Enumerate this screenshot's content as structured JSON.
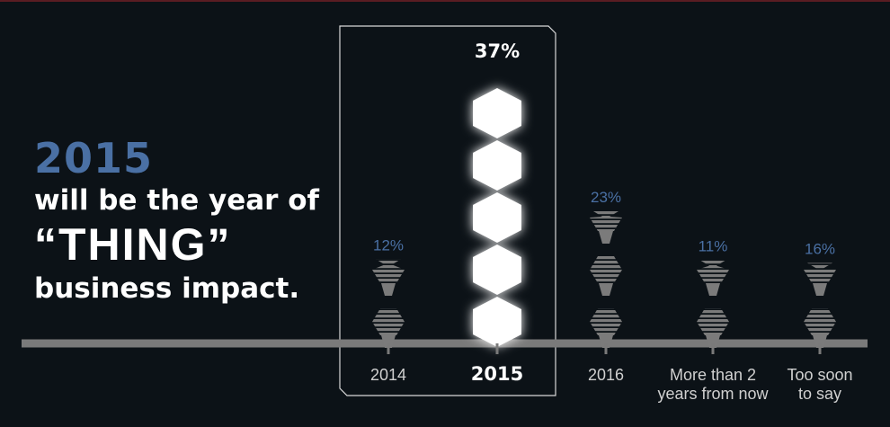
{
  "headline": {
    "year": "2015",
    "line1": "will be the year of",
    "line2": "“THING”",
    "line3": "business impact."
  },
  "colors": {
    "background": "#0c1217",
    "accent_blue": "#4a70a4",
    "bar_gray": "#7b7b7b",
    "highlight": "#ffffff",
    "axis": "#7a7a7a"
  },
  "chart_data": {
    "type": "bar",
    "style": "stacked-hexagon-pictograph",
    "title": "",
    "xlabel": "",
    "ylabel": "",
    "categories": [
      [
        "2014"
      ],
      [
        "2015"
      ],
      [
        "2016"
      ],
      [
        "More than 2",
        "years from now"
      ],
      [
        "Too soon",
        "to say"
      ]
    ],
    "values": [
      12,
      37,
      23,
      11,
      16
    ],
    "value_labels": [
      "12%",
      "37%",
      "23%",
      "11%",
      "16%"
    ],
    "highlight_index": 1,
    "units_per_hexagon": 7.4,
    "grid": false,
    "legend": "none"
  }
}
